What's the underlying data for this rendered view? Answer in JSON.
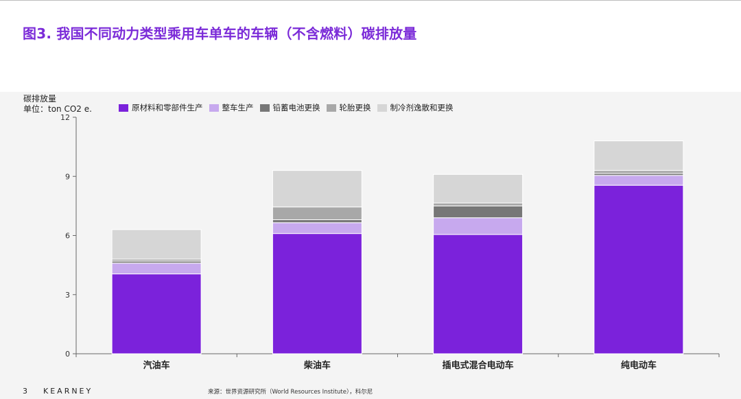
{
  "title": "图3. 我国不同动力类型乘用车单车的车辆（不含燃料）碳排放量",
  "footer": {
    "page_number": "3",
    "brand": "KEARNEY",
    "source": "来源：世界资源研究所（World Resources Institute），科尔尼"
  },
  "colors": {
    "title": "#7B2BD8",
    "series": [
      "#7B22DB",
      "#C7A9EE",
      "#777777",
      "#A8A8A8",
      "#D6D6D6"
    ]
  },
  "chart_data": {
    "type": "bar",
    "stacked": true,
    "title": "图3. 我国不同动力类型乘用车单车的车辆（不含燃料）碳排放量",
    "ylabel": "碳排放量",
    "yunit": "单位：ton CO2 e.",
    "ylim": [
      0,
      12
    ],
    "yticks": [
      "0",
      "3",
      "6",
      "9",
      "12"
    ],
    "categories": [
      "汽油车",
      "柴油车",
      "插电式混合电动车",
      "纯电动车"
    ],
    "series": [
      {
        "name": "原材料和零部件生产",
        "values": [
          4.05,
          6.1,
          6.05,
          8.55
        ]
      },
      {
        "name": "整车生产",
        "values": [
          0.55,
          0.55,
          0.85,
          0.5
        ]
      },
      {
        "name": "铅蓄电池更换",
        "values": [
          0.1,
          0.15,
          0.6,
          0.1
        ]
      },
      {
        "name": "轮胎更换",
        "values": [
          0.1,
          0.65,
          0.15,
          0.15
        ]
      },
      {
        "name": "制冷剂逸散和更换",
        "values": [
          1.5,
          1.85,
          1.45,
          1.5
        ]
      }
    ],
    "legend_position": "top",
    "grid": false
  }
}
